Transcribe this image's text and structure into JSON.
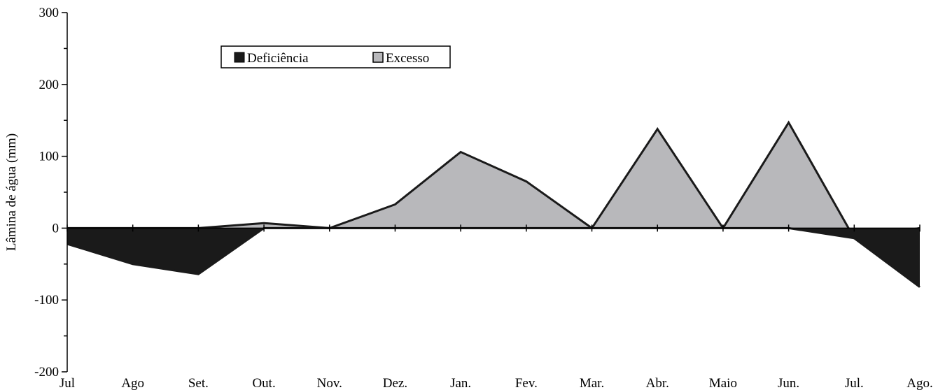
{
  "chart_data": {
    "type": "area",
    "title": "",
    "xlabel": "",
    "ylabel": "Lâmina de água (mm)",
    "ylim": [
      -200,
      300
    ],
    "yticks": [
      "300",
      "200",
      "100",
      "0",
      "-100",
      "-200"
    ],
    "categories": [
      "Jul",
      "Ago",
      "Set.",
      "Out.",
      "Nov.",
      "Dez.",
      "Jan.",
      "Fev.",
      "Mar.",
      "Abr.",
      "Maio",
      "Jun.",
      "Jul.",
      "Ago."
    ],
    "series": [
      {
        "name": "Deficiência",
        "color": "#1a1a1a",
        "values": [
          -22,
          -50,
          -64,
          0,
          0,
          0,
          0,
          0,
          0,
          0,
          0,
          0,
          -14,
          -82
        ]
      },
      {
        "name": "Excesso",
        "color": "#b8b8bb",
        "values": [
          0,
          0,
          0,
          7,
          0,
          33,
          106,
          65,
          0,
          138,
          0,
          147,
          -14,
          0
        ]
      }
    ],
    "grid": false,
    "legend": {
      "position": "top-left",
      "items": [
        {
          "label": "Deficiência",
          "color": "#1a1a1a"
        },
        {
          "label": "Excesso",
          "color": "#b8b8bb"
        }
      ]
    }
  }
}
